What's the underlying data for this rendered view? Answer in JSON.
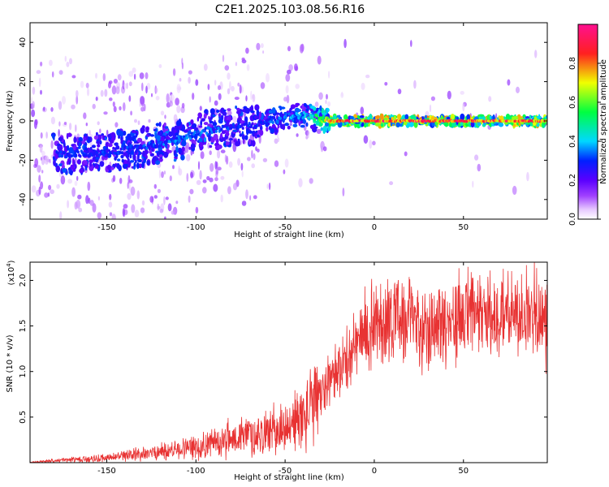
{
  "title": "C2E1.2025.103.08.56.R16",
  "colors": {
    "snr_line": "#e83232",
    "spec_low": "#6a00ff",
    "spec_mid": "#00e5ff",
    "spec_high": "#ff2020"
  },
  "chart_data": [
    {
      "type": "heatmap",
      "xlabel": "Height of straight line (km)",
      "ylabel": "Frequency (Hz)",
      "xlim": [
        -193,
        97
      ],
      "ylim": [
        -50,
        50
      ],
      "xticks": [
        -150,
        -100,
        -50,
        0,
        50
      ],
      "yticks": [
        -40,
        -20,
        0,
        20,
        40
      ],
      "colorbar": {
        "label": "Normalized spectral amplitude",
        "range": [
          0.0,
          1.0
        ],
        "ticks": [
          0.0,
          0.2,
          0.4,
          0.6,
          0.8
        ],
        "tick_labels": [
          "0.0",
          "0.2",
          "0.4",
          "0.6",
          "0.8"
        ],
        "colormap": "rainbow (white-violet-blue-cyan-green-yellow-red-magenta)"
      },
      "ridge": {
        "description": "dominant frequency ridge vs height",
        "x": [
          -175,
          -150,
          -130,
          -110,
          -95,
          -80,
          -65,
          -50,
          -40,
          -30,
          -25,
          0,
          50,
          97
        ],
        "y": [
          -17,
          -16,
          -13,
          -10,
          -5,
          -3,
          -2,
          2,
          3,
          1,
          0,
          0,
          0,
          0
        ],
        "amplitude": [
          0.3,
          0.3,
          0.32,
          0.35,
          0.35,
          0.3,
          0.3,
          0.35,
          0.4,
          0.6,
          0.85,
          0.9,
          0.9,
          0.85
        ]
      }
    },
    {
      "type": "line",
      "xlabel": "Height of straight line (km)",
      "ylabel": "SNR (10 * v/v)",
      "y_multiplier": "(x10",
      "y_multiplier_exp": "4",
      "y_multiplier_close": ")",
      "xlim": [
        -193,
        97
      ],
      "ylim": [
        0,
        2.2
      ],
      "xticks": [
        -150,
        -100,
        -50,
        0,
        50
      ],
      "yticks": [
        0.5,
        1.0,
        1.5,
        2.0
      ],
      "ytick_labels": [
        "0.5",
        "1.0",
        "1.5",
        "2.0"
      ],
      "series": [
        {
          "x": [
            -193,
            -180,
            -160,
            -140,
            -120,
            -100,
            -90,
            -80,
            -70,
            -60,
            -50,
            -40,
            -30,
            -25,
            -20,
            -15,
            -10,
            0,
            10,
            20,
            30,
            40,
            50,
            60,
            70,
            80,
            90,
            97
          ],
          "y": [
            0.0,
            0.02,
            0.04,
            0.07,
            0.12,
            0.17,
            0.22,
            0.27,
            0.3,
            0.33,
            0.38,
            0.5,
            0.72,
            0.95,
            1.05,
            1.1,
            1.3,
            1.55,
            1.6,
            1.55,
            1.5,
            1.55,
            1.6,
            1.6,
            1.62,
            1.62,
            1.63,
            1.55
          ]
        }
      ]
    }
  ]
}
